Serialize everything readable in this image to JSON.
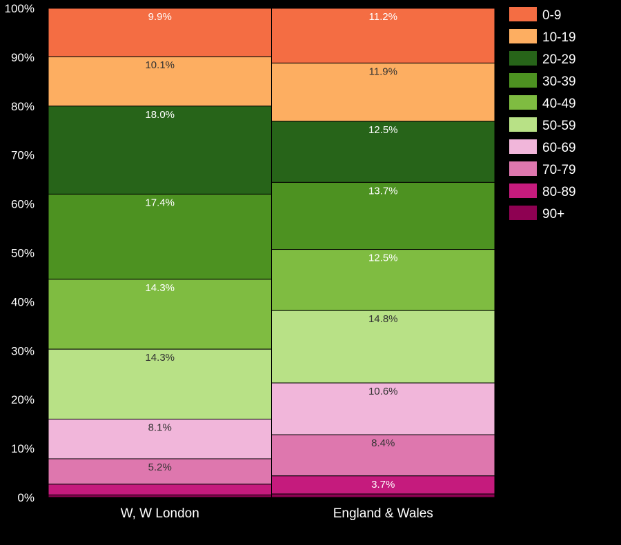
{
  "chart_data": {
    "type": "bar",
    "stacked": true,
    "normalized": true,
    "categories": [
      "W, W London",
      "England & Wales"
    ],
    "ylim": [
      0,
      100
    ],
    "yticks": [
      "0%",
      "10%",
      "20%",
      "30%",
      "40%",
      "50%",
      "60%",
      "70%",
      "80%",
      "90%",
      "100%"
    ],
    "legend_position": "right",
    "series": [
      {
        "name": "0-9",
        "color": "#f46d43",
        "label_color": "#ffffff",
        "values": [
          9.9,
          11.2
        ],
        "labels": [
          "9.9%",
          "11.2%"
        ]
      },
      {
        "name": "10-19",
        "color": "#fdae61",
        "label_color": "#333333",
        "values": [
          10.1,
          11.9
        ],
        "labels": [
          "10.1%",
          "11.9%"
        ]
      },
      {
        "name": "20-29",
        "color": "#276419",
        "label_color": "#ffffff",
        "values": [
          18.0,
          12.5
        ],
        "labels": [
          "18.0%",
          "12.5%"
        ]
      },
      {
        "name": "30-39",
        "color": "#4d9221",
        "label_color": "#ffffff",
        "values": [
          17.4,
          13.7
        ],
        "labels": [
          "17.4%",
          "13.7%"
        ]
      },
      {
        "name": "40-49",
        "color": "#7fbc41",
        "label_color": "#ffffff",
        "values": [
          14.3,
          12.5
        ],
        "labels": [
          "14.3%",
          "12.5%"
        ]
      },
      {
        "name": "50-59",
        "color": "#b8e186",
        "label_color": "#333333",
        "values": [
          14.3,
          14.8
        ],
        "labels": [
          "14.3%",
          "14.8%"
        ]
      },
      {
        "name": "60-69",
        "color": "#f1b6da",
        "label_color": "#333333",
        "values": [
          8.1,
          10.6
        ],
        "labels": [
          "8.1%",
          "10.6%"
        ]
      },
      {
        "name": "70-79",
        "color": "#de77ae",
        "label_color": "#333333",
        "values": [
          5.2,
          8.4
        ],
        "labels": [
          "5.2%",
          "8.4%"
        ]
      },
      {
        "name": "80-89",
        "color": "#c51b7d",
        "label_color": "#ffffff",
        "values": [
          2.2,
          3.7
        ],
        "labels": [
          "",
          "3.7%"
        ]
      },
      {
        "name": "90+",
        "color": "#8e0152",
        "label_color": "#ffffff",
        "values": [
          0.5,
          0.7
        ],
        "labels": [
          "",
          ""
        ]
      }
    ]
  }
}
